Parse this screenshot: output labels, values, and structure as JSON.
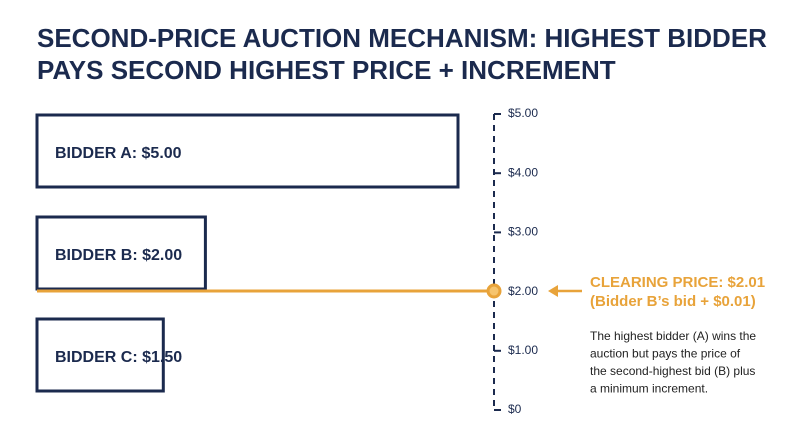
{
  "chart_data": {
    "type": "bar",
    "title_lines": [
      "SECOND-PRICE AUCTION MECHANISM: HIGHEST BIDDER",
      "PAYS SECOND HIGHEST PRICE + INCREMENT"
    ],
    "categories": [
      "BIDDER A: $5.00",
      "BIDDER B: $2.00",
      "BIDDER C: $1.50"
    ],
    "values": [
      5,
      2,
      1.5
    ],
    "color": "#1b2a4e",
    "ylim": [
      0,
      5
    ],
    "yticks": [
      {
        "value": 5,
        "label": "$5.00"
      },
      {
        "value": 4,
        "label": "$4.00"
      },
      {
        "value": 3,
        "label": "$3.00"
      },
      {
        "value": 2,
        "label": "$2.00"
      },
      {
        "value": 1,
        "label": "$1.00"
      },
      {
        "value": 0,
        "label": "$0"
      }
    ],
    "clearing": {
      "value": 2.01,
      "label": "CLEARING PRICE: $2.01",
      "sublabel": "(Bidder B’s bid + $0.01)",
      "color": "#e8a33a"
    },
    "note_lines": [
      "The highest bidder (A) wins the",
      "auction but pays the price of",
      "the second-highest bid (B) plus",
      "a minimum increment."
    ]
  }
}
